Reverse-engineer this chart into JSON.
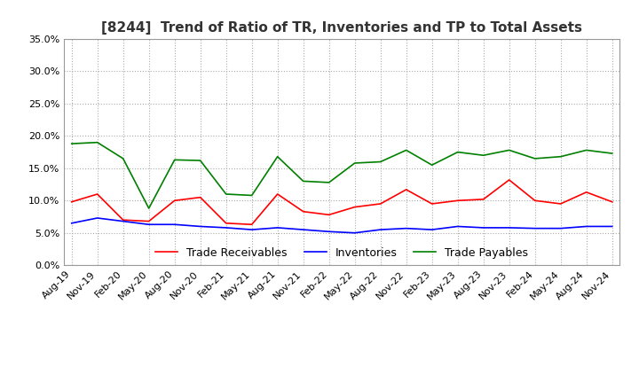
{
  "title": "[8244]  Trend of Ratio of TR, Inventories and TP to Total Assets",
  "title_fontsize": 11,
  "ylim": [
    0.0,
    0.35
  ],
  "yticks": [
    0.0,
    0.05,
    0.1,
    0.15,
    0.2,
    0.25,
    0.3,
    0.35
  ],
  "legend_labels": [
    "Trade Receivables",
    "Inventories",
    "Trade Payables"
  ],
  "legend_colors": [
    "#ff0000",
    "#0000ff",
    "#008000"
  ],
  "background_color": "#ffffff",
  "grid_color": "#aaaaaa",
  "dates": [
    "Aug-19",
    "Nov-19",
    "Feb-20",
    "May-20",
    "Aug-20",
    "Nov-20",
    "Feb-21",
    "May-21",
    "Aug-21",
    "Nov-21",
    "Feb-22",
    "May-22",
    "Aug-22",
    "Nov-22",
    "Feb-23",
    "May-23",
    "Aug-23",
    "Nov-23",
    "Feb-24",
    "May-24",
    "Aug-24",
    "Nov-24"
  ],
  "trade_receivables": [
    0.098,
    0.11,
    0.07,
    0.068,
    0.1,
    0.105,
    0.065,
    0.063,
    0.11,
    0.083,
    0.078,
    0.09,
    0.095,
    0.117,
    0.095,
    0.1,
    0.102,
    0.132,
    0.1,
    0.095,
    0.113,
    0.098
  ],
  "inventories": [
    0.065,
    0.073,
    0.068,
    0.063,
    0.063,
    0.06,
    0.058,
    0.055,
    0.058,
    0.055,
    0.052,
    0.05,
    0.055,
    0.057,
    0.055,
    0.06,
    0.058,
    0.058,
    0.057,
    0.057,
    0.06,
    0.06
  ],
  "trade_payables": [
    0.188,
    0.19,
    0.165,
    0.088,
    0.163,
    0.162,
    0.11,
    0.108,
    0.168,
    0.13,
    0.128,
    0.158,
    0.16,
    0.178,
    0.155,
    0.175,
    0.17,
    0.178,
    0.165,
    0.168,
    0.178,
    0.173
  ]
}
